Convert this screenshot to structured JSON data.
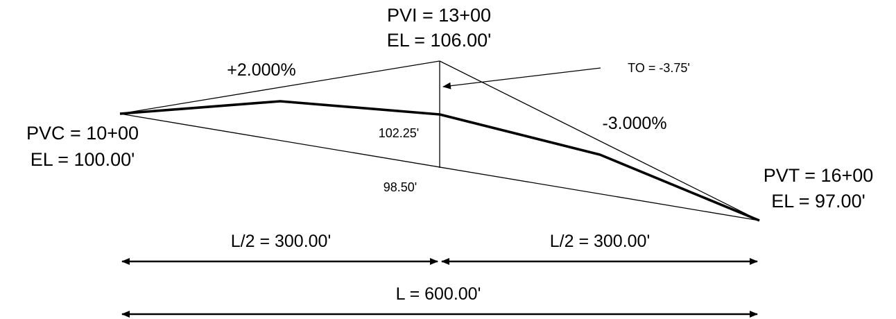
{
  "pvi": {
    "station": "PVI = 13+00",
    "elevation": "EL = 106.00'"
  },
  "pvc": {
    "station": "PVC = 10+00",
    "elevation": "EL = 100.00'"
  },
  "pvt": {
    "station": "PVT = 16+00",
    "elevation": "EL = 97.00'"
  },
  "grades": {
    "g1": "+2.000%",
    "g2": "-3.000%"
  },
  "tangent_offset": "TO = -3.75'",
  "curve_elevation_at_pvi": "102.25'",
  "chord_elevation_at_pvi": "98.50'",
  "dimensions": {
    "half_left": "L/2 = 300.00'",
    "half_right": "L/2 = 300.00'",
    "total": "L = 600.00'"
  }
}
